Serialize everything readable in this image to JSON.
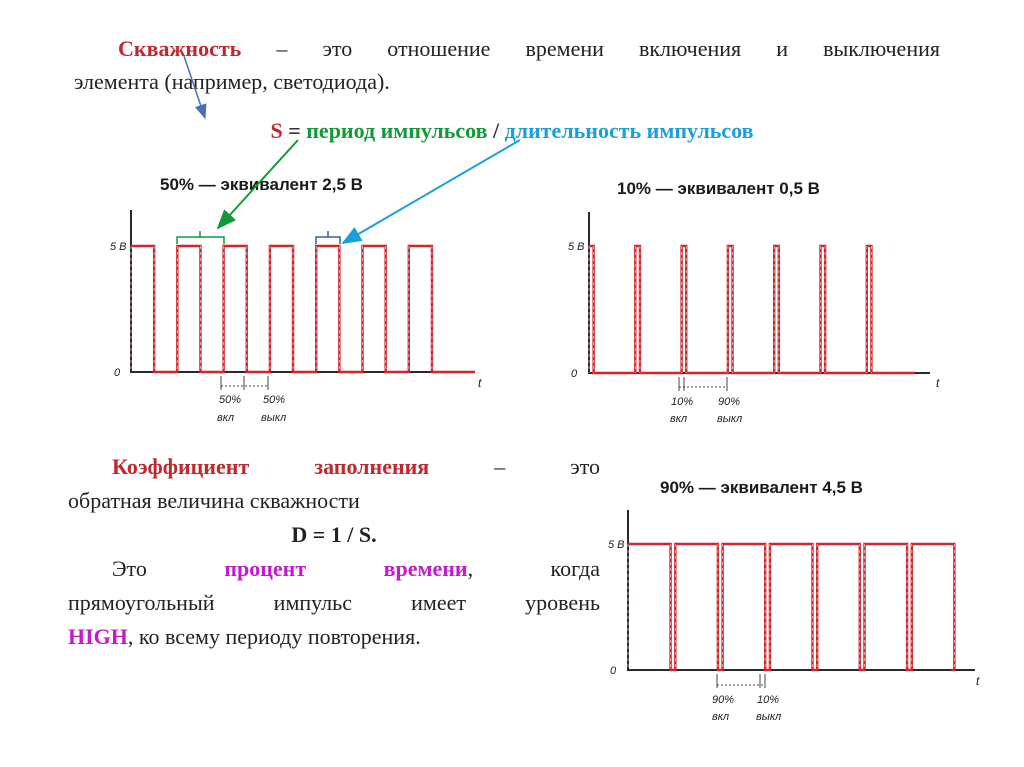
{
  "intro": {
    "term": "Скважность",
    "line1_rest": " – это отношение времени включения и выключения",
    "line2": "элемента (например, светодиода)."
  },
  "formula_s": {
    "s": "S",
    "eq": " = ",
    "period": "период импульсов",
    "slash": " / ",
    "duration": "длительность импульсов"
  },
  "chart_data": [
    {
      "type": "line",
      "title": "50% — эквивалент 2,5 В",
      "duty_percent": 50,
      "y_levels": [
        0,
        5
      ],
      "y_tick_labels": [
        "5 В",
        "0"
      ],
      "xlabel": "t",
      "pulses": 7,
      "annotations": [
        {
          "percent": "50%",
          "label": "вкл"
        },
        {
          "percent": "50%",
          "label": "выкл"
        }
      ],
      "color": "#d0252b"
    },
    {
      "type": "line",
      "title": "10% — эквивалент 0,5 В",
      "duty_percent": 10,
      "y_levels": [
        0,
        5
      ],
      "y_tick_labels": [
        "5 В",
        "0"
      ],
      "xlabel": "t",
      "pulses": 7,
      "annotations": [
        {
          "percent": "10%",
          "label": "вкл"
        },
        {
          "percent": "90%",
          "label": "выкл"
        }
      ],
      "color": "#d0252b"
    },
    {
      "type": "line",
      "title": "90% — эквивалент 4,5 В",
      "duty_percent": 90,
      "y_levels": [
        0,
        5
      ],
      "y_tick_labels": [
        "5 В",
        "0"
      ],
      "xlabel": "t",
      "pulses": 7,
      "annotations": [
        {
          "percent": "90%",
          "label": "вкл"
        },
        {
          "percent": "10%",
          "label": "выкл"
        }
      ],
      "color": "#d0252b"
    }
  ],
  "koef": {
    "term": "Коэффициент",
    "term2": "заполнения",
    "dash": "–",
    "eto": "это",
    "line2": "обратная величина скважности",
    "formula": "D = 1 / S.",
    "p2_start": "Это",
    "p2_mag1": "процент",
    "p2_mag2": "времени",
    "p2_comma": ",",
    "p2_when": "когда",
    "line4": "прямоугольный импульс имеет уровень",
    "high": "HIGH",
    "line5_rest": ", ко всему периоду повторения."
  },
  "colors": {
    "term_red": "#c0282d",
    "green": "#119a3a",
    "cyan": "#1a9fd8",
    "magenta": "#c21bc9",
    "signal_red": "#d0252b",
    "arrow_blue": "#4a6fb5"
  }
}
